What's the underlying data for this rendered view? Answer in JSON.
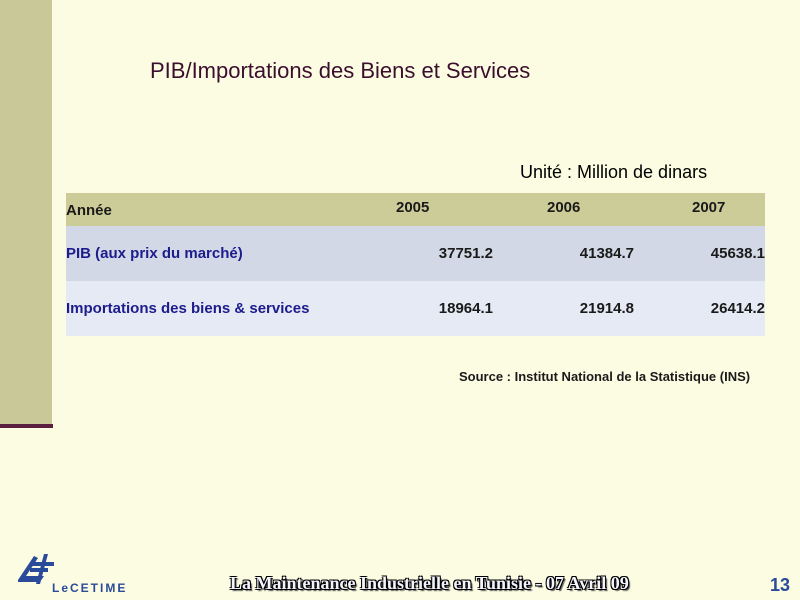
{
  "slide": {
    "title": "PIB/Importations des Biens et Services",
    "unit_note": "Unité : Million de dinars",
    "source": "Source : Institut National de la Statistique (INS)",
    "footer": "La Maintenance Industrielle en Tunisie  - 07 Avril 09",
    "page_number": "13",
    "logo_text": "LeCETIME",
    "colors": {
      "background": "#fcfce2",
      "left_band": "#c8c898",
      "accent_line": "#5a1e3e",
      "header_row": "#cccc99",
      "row_odd": "#d2d8e6",
      "row_even": "#e6eaf4",
      "label_blue": "#1c1c8c",
      "logo_blue": "#2a4a9a"
    }
  },
  "table": {
    "header": {
      "label": "Année",
      "years": [
        "2005",
        "2006",
        "2007"
      ]
    },
    "rows": [
      {
        "label": "PIB (aux prix du marché)",
        "values": [
          "37751.2",
          "41384.7",
          "45638.1"
        ]
      },
      {
        "label": "Importations des biens & services",
        "values": [
          "18964.1",
          "21914.8",
          "26414.2"
        ]
      }
    ]
  }
}
